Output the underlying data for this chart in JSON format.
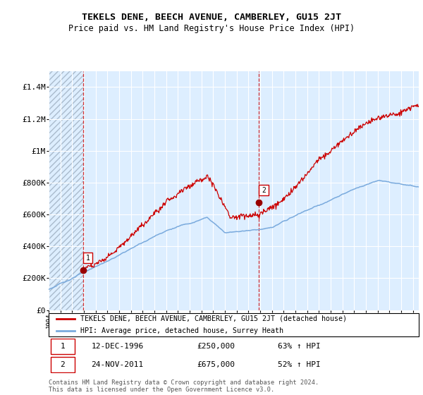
{
  "title": "TEKELS DENE, BEECH AVENUE, CAMBERLEY, GU15 2JT",
  "subtitle": "Price paid vs. HM Land Registry's House Price Index (HPI)",
  "ylim": [
    0,
    1500000
  ],
  "yticks": [
    0,
    200000,
    400000,
    600000,
    800000,
    1000000,
    1200000,
    1400000
  ],
  "ytick_labels": [
    "£0",
    "£200K",
    "£400K",
    "£600K",
    "£800K",
    "£1M",
    "£1.2M",
    "£1.4M"
  ],
  "background_color": "#ffffff",
  "plot_bg_color": "#ddeeff",
  "hatch_bg_color": "#c8d4e8",
  "grid_color": "#ffffff",
  "sale1_date": 1996.95,
  "sale1_price": 250000,
  "sale2_date": 2011.9,
  "sale2_price": 675000,
  "legend_line1": "TEKELS DENE, BEECH AVENUE, CAMBERLEY, GU15 2JT (detached house)",
  "legend_line2": "HPI: Average price, detached house, Surrey Heath",
  "red_line_color": "#cc0000",
  "blue_line_color": "#7aaadd",
  "marker_color": "#990000",
  "xmin": 1994.0,
  "xmax": 2025.5,
  "footnote": "Contains HM Land Registry data © Crown copyright and database right 2024.\nThis data is licensed under the Open Government Licence v3.0."
}
